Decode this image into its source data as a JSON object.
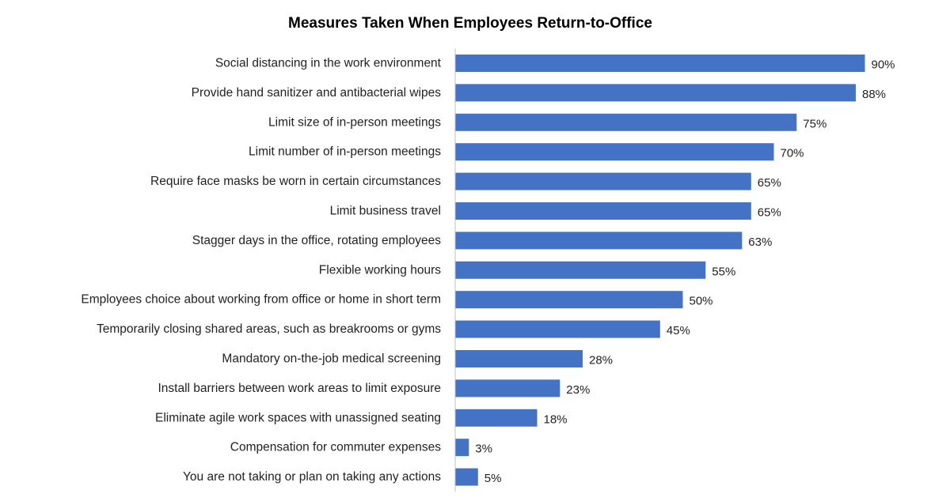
{
  "chart_data": {
    "type": "bar",
    "orientation": "horizontal",
    "title": "Measures Taken When Employees Return-to-Office",
    "xlabel": "",
    "ylabel": "",
    "value_suffix": "%",
    "xlim": [
      0,
      100
    ],
    "grid": false,
    "legend": "none",
    "bar_color": "#4472C4",
    "axis_color": "#BFBFBF",
    "categories": [
      "Social distancing in the work environment",
      "Provide hand sanitizer and antibacterial wipes",
      "Limit size of in-person meetings",
      "Limit number of in-person meetings",
      "Require face masks be worn in certain circumstances",
      "Limit business travel",
      "Stagger days in the office, rotating employees",
      "Flexible working hours",
      "Employees choice about working from office or home in short term",
      "Temporarily closing shared areas, such as breakrooms or gyms",
      "Mandatory on-the-job medical screening",
      "Install barriers between work areas to limit exposure",
      "Eliminate agile work spaces with unassigned seating",
      "Compensation for commuter expenses",
      "You are not taking  or plan on taking any actions"
    ],
    "values": [
      90,
      88,
      75,
      70,
      65,
      65,
      63,
      55,
      50,
      45,
      28,
      23,
      18,
      3,
      5
    ],
    "value_labels": [
      "90%",
      "88%",
      "75%",
      "70%",
      "65%",
      "65%",
      "63%",
      "55%",
      "50%",
      "45%",
      "28%",
      "23%",
      "18%",
      "3%",
      "5%"
    ]
  }
}
